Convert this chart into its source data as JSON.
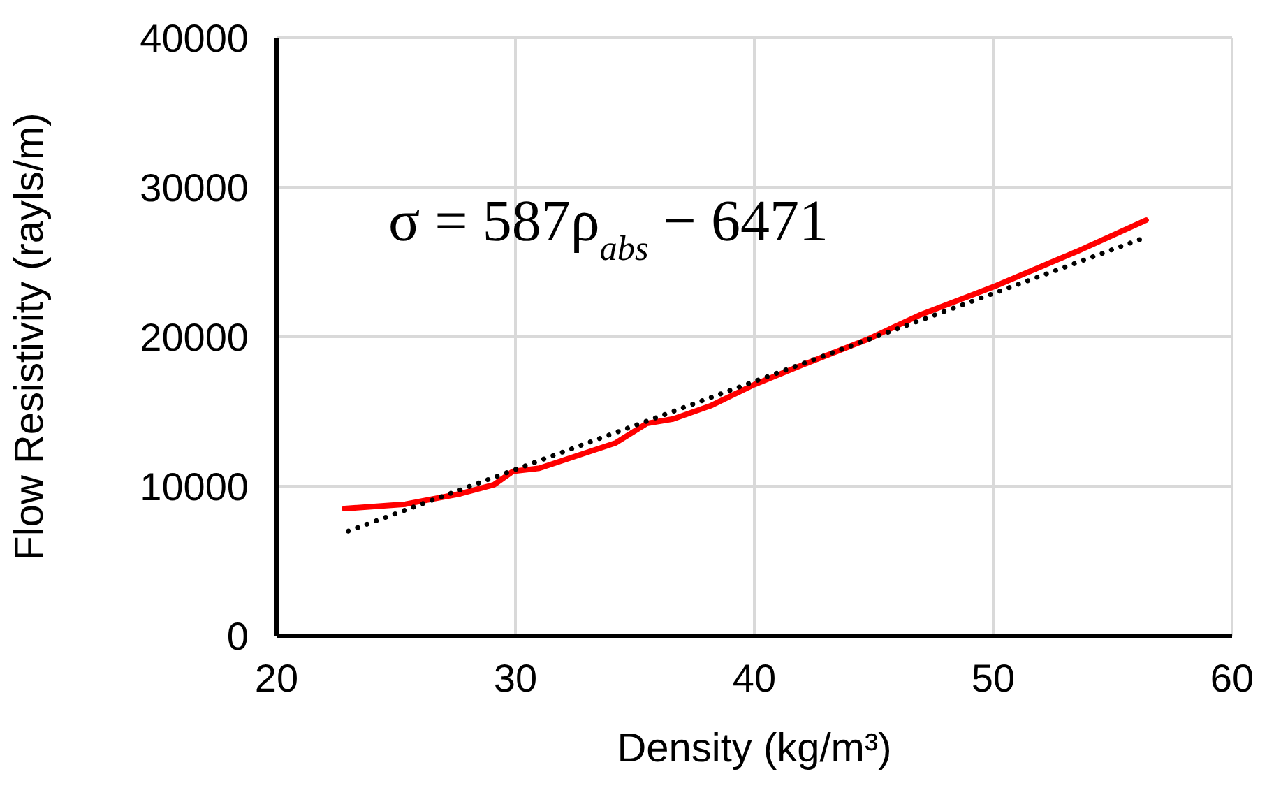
{
  "chart_data": {
    "type": "line",
    "xlabel": "Density (kg/m³)",
    "ylabel": "Flow Resistivity (rayls/m)",
    "xlim": [
      20,
      60
    ],
    "xticks": [
      20,
      30,
      40,
      50,
      60
    ],
    "ylim": [
      0,
      40000
    ],
    "yticks": [
      0,
      10000,
      20000,
      30000,
      40000
    ],
    "grid": true,
    "marker": "none",
    "annotations": [
      "σ = 587ρ$_{abs}$ − 6471"
    ],
    "series": [
      {
        "color": "#ff0000",
        "line_style": "solid",
        "x": [
          22.85,
          25.4,
          27.7,
          29.1,
          29.9,
          31.0,
          32.5,
          34.2,
          35.5,
          36.6,
          38.2,
          40.0,
          42.0,
          44.7,
          47.0,
          50.1,
          53.5,
          56.4
        ],
        "values": [
          8500,
          8800,
          9500,
          10100,
          11000,
          11200,
          12000,
          12900,
          14200,
          14500,
          15400,
          16800,
          18100,
          19800,
          21500,
          23400,
          25700,
          27800
        ]
      },
      {
        "color": "#000000",
        "line_style": "dotted",
        "x": [
          23,
          56.3
        ],
        "values": [
          7000,
          26600
        ]
      }
    ]
  }
}
